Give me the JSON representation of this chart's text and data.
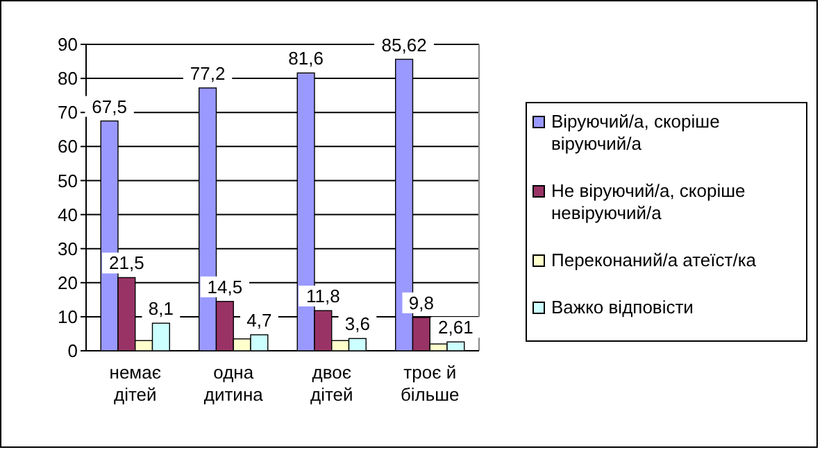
{
  "chart_data": {
    "type": "bar",
    "categories": [
      "немає дітей",
      "одна дитина",
      "двоє дітей",
      "троє й більше"
    ],
    "series": [
      {
        "name": "Віруючий/а, скоріше віруючий/а",
        "color": "#9999ff",
        "values": [
          67.5,
          77.2,
          81.6,
          85.62
        ],
        "value_labels": [
          "67,5",
          "77,2",
          "81,6",
          "85,62"
        ]
      },
      {
        "name": "Не віруючий/а, скоріше невіруючий/а",
        "color": "#993366",
        "values": [
          21.5,
          14.5,
          11.8,
          9.8
        ],
        "value_labels": [
          "21,5",
          "14,5",
          "11,8",
          "9,8"
        ]
      },
      {
        "name": "Переконаний/а атеїст/ка",
        "color": "#ffffcc",
        "values": [
          3,
          3.5,
          3,
          2
        ],
        "value_labels": [
          null,
          null,
          null,
          null
        ]
      },
      {
        "name": "Важко відповісти",
        "color": "#ccffff",
        "values": [
          8.1,
          4.7,
          3.6,
          2.61
        ],
        "value_labels": [
          "8,1",
          "4,7",
          "3,6",
          "2,61"
        ]
      }
    ],
    "ylim": [
      0,
      90
    ],
    "yticks": [
      0,
      10,
      20,
      30,
      40,
      50,
      60,
      70,
      80,
      90
    ],
    "grid": "y",
    "legend": "right"
  }
}
